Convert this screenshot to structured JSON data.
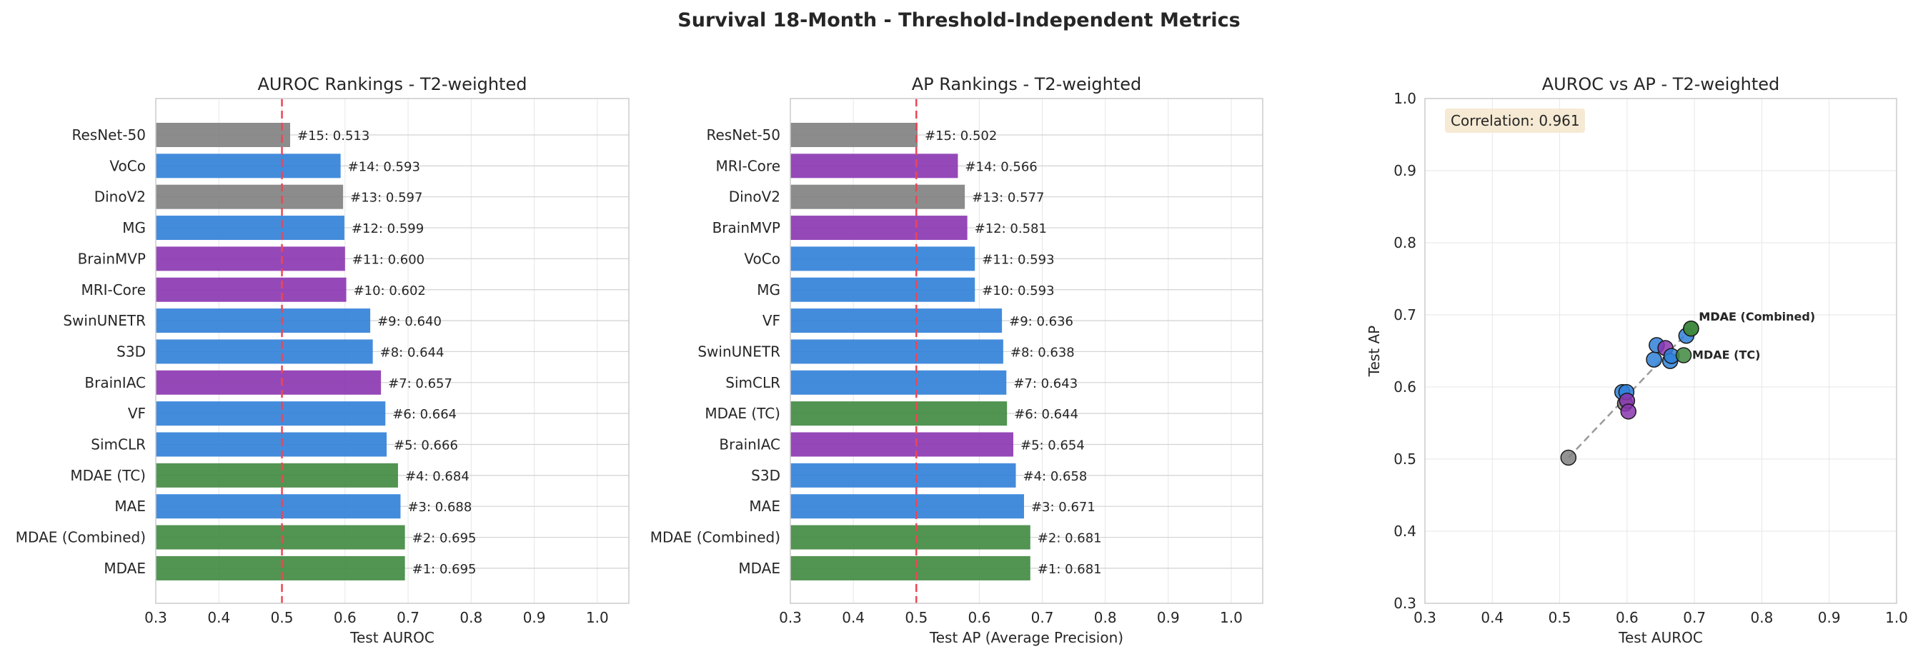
{
  "figure_title": "Survival 18-Month - Threshold-Independent Metrics",
  "colors": {
    "green": "#3f883f",
    "blue": "#2f80d8",
    "purple": "#8a35b0",
    "gray": "#808080",
    "refline": "#ec4656",
    "grid": "#e6e6e6",
    "spine": "#cccccc",
    "annotation_bg": "#f5e6cc"
  },
  "chart_data": [
    {
      "type": "bar",
      "orientation": "horizontal",
      "title": "AUROC Rankings - T2-weighted",
      "xlabel": "Test AUROC",
      "ylabel": "",
      "xlim": [
        0.3,
        1.05
      ],
      "xticks": [
        "0.3",
        "0.4",
        "0.5",
        "0.6",
        "0.7",
        "0.8",
        "0.9",
        "1.0"
      ],
      "reference_line": 0.5,
      "bars": [
        {
          "label": "ResNet-50",
          "value": 0.513,
          "text": "#15: 0.513",
          "color": "gray"
        },
        {
          "label": "VoCo",
          "value": 0.593,
          "text": "#14: 0.593",
          "color": "blue"
        },
        {
          "label": "DinoV2",
          "value": 0.597,
          "text": "#13: 0.597",
          "color": "gray"
        },
        {
          "label": "MG",
          "value": 0.599,
          "text": "#12: 0.599",
          "color": "blue"
        },
        {
          "label": "BrainMVP",
          "value": 0.6,
          "text": "#11: 0.600",
          "color": "purple"
        },
        {
          "label": "MRI-Core",
          "value": 0.602,
          "text": "#10: 0.602",
          "color": "purple"
        },
        {
          "label": "SwinUNETR",
          "value": 0.64,
          "text": "#9: 0.640",
          "color": "blue"
        },
        {
          "label": "S3D",
          "value": 0.644,
          "text": "#8: 0.644",
          "color": "blue"
        },
        {
          "label": "BrainIAC",
          "value": 0.657,
          "text": "#7: 0.657",
          "color": "purple"
        },
        {
          "label": "VF",
          "value": 0.664,
          "text": "#6: 0.664",
          "color": "blue"
        },
        {
          "label": "SimCLR",
          "value": 0.666,
          "text": "#5: 0.666",
          "color": "blue"
        },
        {
          "label": "MDAE (TC)",
          "value": 0.684,
          "text": "#4: 0.684",
          "color": "green"
        },
        {
          "label": "MAE",
          "value": 0.688,
          "text": "#3: 0.688",
          "color": "blue"
        },
        {
          "label": "MDAE (Combined)",
          "value": 0.695,
          "text": "#2: 0.695",
          "color": "green"
        },
        {
          "label": "MDAE",
          "value": 0.695,
          "text": "#1: 0.695",
          "color": "green"
        }
      ]
    },
    {
      "type": "bar",
      "orientation": "horizontal",
      "title": "AP Rankings - T2-weighted",
      "xlabel": "Test AP (Average Precision)",
      "ylabel": "",
      "xlim": [
        0.3,
        1.05
      ],
      "xticks": [
        "0.3",
        "0.4",
        "0.5",
        "0.6",
        "0.7",
        "0.8",
        "0.9",
        "1.0"
      ],
      "reference_line": 0.5,
      "bars": [
        {
          "label": "ResNet-50",
          "value": 0.502,
          "text": "#15: 0.502",
          "color": "gray"
        },
        {
          "label": "MRI-Core",
          "value": 0.566,
          "text": "#14: 0.566",
          "color": "purple"
        },
        {
          "label": "DinoV2",
          "value": 0.577,
          "text": "#13: 0.577",
          "color": "gray"
        },
        {
          "label": "BrainMVP",
          "value": 0.581,
          "text": "#12: 0.581",
          "color": "purple"
        },
        {
          "label": "VoCo",
          "value": 0.593,
          "text": "#11: 0.593",
          "color": "blue"
        },
        {
          "label": "MG",
          "value": 0.593,
          "text": "#10: 0.593",
          "color": "blue"
        },
        {
          "label": "VF",
          "value": 0.636,
          "text": "#9: 0.636",
          "color": "blue"
        },
        {
          "label": "SwinUNETR",
          "value": 0.638,
          "text": "#8: 0.638",
          "color": "blue"
        },
        {
          "label": "SimCLR",
          "value": 0.643,
          "text": "#7: 0.643",
          "color": "blue"
        },
        {
          "label": "MDAE (TC)",
          "value": 0.644,
          "text": "#6: 0.644",
          "color": "green"
        },
        {
          "label": "BrainIAC",
          "value": 0.654,
          "text": "#5: 0.654",
          "color": "purple"
        },
        {
          "label": "S3D",
          "value": 0.658,
          "text": "#4: 0.658",
          "color": "blue"
        },
        {
          "label": "MAE",
          "value": 0.671,
          "text": "#3: 0.671",
          "color": "blue"
        },
        {
          "label": "MDAE (Combined)",
          "value": 0.681,
          "text": "#2: 0.681",
          "color": "green"
        },
        {
          "label": "MDAE",
          "value": 0.681,
          "text": "#1: 0.681",
          "color": "green"
        }
      ]
    },
    {
      "type": "scatter",
      "title": "AUROC vs AP - T2-weighted",
      "xlabel": "Test AUROC",
      "ylabel": "Test AP",
      "xlim": [
        0.3,
        1.0
      ],
      "ylim": [
        0.3,
        1.0
      ],
      "xticks": [
        "0.3",
        "0.4",
        "0.5",
        "0.6",
        "0.7",
        "0.8",
        "0.9",
        "1.0"
      ],
      "yticks": [
        "0.3",
        "0.4",
        "0.5",
        "0.6",
        "0.7",
        "0.8",
        "0.9",
        "1.0"
      ],
      "annotation": "Correlation: 0.961",
      "trend_line": [
        [
          0.513,
          0.502
        ],
        [
          0.695,
          0.681
        ]
      ],
      "points": [
        {
          "x": 0.513,
          "y": 0.502,
          "color": "gray"
        },
        {
          "x": 0.593,
          "y": 0.593,
          "color": "blue"
        },
        {
          "x": 0.597,
          "y": 0.577,
          "color": "gray"
        },
        {
          "x": 0.599,
          "y": 0.593,
          "color": "blue"
        },
        {
          "x": 0.6,
          "y": 0.581,
          "color": "purple"
        },
        {
          "x": 0.602,
          "y": 0.566,
          "color": "purple"
        },
        {
          "x": 0.64,
          "y": 0.638,
          "color": "blue"
        },
        {
          "x": 0.644,
          "y": 0.658,
          "color": "blue"
        },
        {
          "x": 0.657,
          "y": 0.654,
          "color": "purple"
        },
        {
          "x": 0.664,
          "y": 0.636,
          "color": "blue"
        },
        {
          "x": 0.666,
          "y": 0.643,
          "color": "blue"
        },
        {
          "x": 0.684,
          "y": 0.644,
          "color": "green"
        },
        {
          "x": 0.688,
          "y": 0.671,
          "color": "blue"
        },
        {
          "x": 0.695,
          "y": 0.681,
          "color": "green"
        },
        {
          "x": 0.695,
          "y": 0.681,
          "color": "green"
        }
      ],
      "point_labels": [
        {
          "text": "MDAE",
          "x": 0.695,
          "y": 0.681
        },
        {
          "text": "MDAE (Combined)",
          "x": 0.695,
          "y": 0.681
        },
        {
          "text": "MDAE (TC)",
          "x": 0.684,
          "y": 0.644
        }
      ]
    }
  ]
}
